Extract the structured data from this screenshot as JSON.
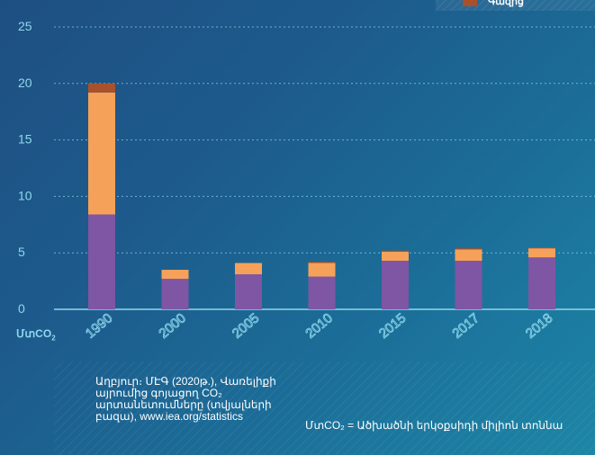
{
  "chart_data": {
    "type": "bar",
    "stacked": true,
    "categories": [
      "1990",
      "2000",
      "2005",
      "2010",
      "2015",
      "2017",
      "2018"
    ],
    "series": [
      {
        "color": "#7e56a4",
        "values": [
          8.4,
          2.7,
          3.1,
          2.9,
          4.3,
          4.3,
          4.6
        ]
      },
      {
        "color": "#f6a15a",
        "values": [
          10.8,
          0.8,
          1.0,
          1.2,
          0.8,
          1.0,
          0.8
        ]
      },
      {
        "name": "Գազից",
        "color": "#a8512b",
        "values": [
          0.8,
          0.0,
          0.0,
          0.1,
          0.1,
          0.1,
          0.1
        ]
      }
    ],
    "yticks": [
      "0",
      "5",
      "10",
      "15",
      "20",
      "25"
    ],
    "ylim": [
      0,
      25
    ],
    "grid": true,
    "grid_style": "dotted",
    "legend_position": "top-right",
    "colors": {
      "tick": "#8fd8ee",
      "grid": "#8fd8ee",
      "axis": "#8fd8ee"
    }
  },
  "unit_label": {
    "prefix": "ՄտCO",
    "subscript": "2"
  },
  "footer": {
    "source": "Աղբյուր։ ՄԷԳ (2020թ.), Վառելիքի այրումից գոյացող CO₂ արտանետումները (տվյալների բազա), www.iea.org/statistics",
    "unit_note": "ՄտCO₂ = Ածխածնի երկօքսիդի միլիոն տոննա"
  }
}
